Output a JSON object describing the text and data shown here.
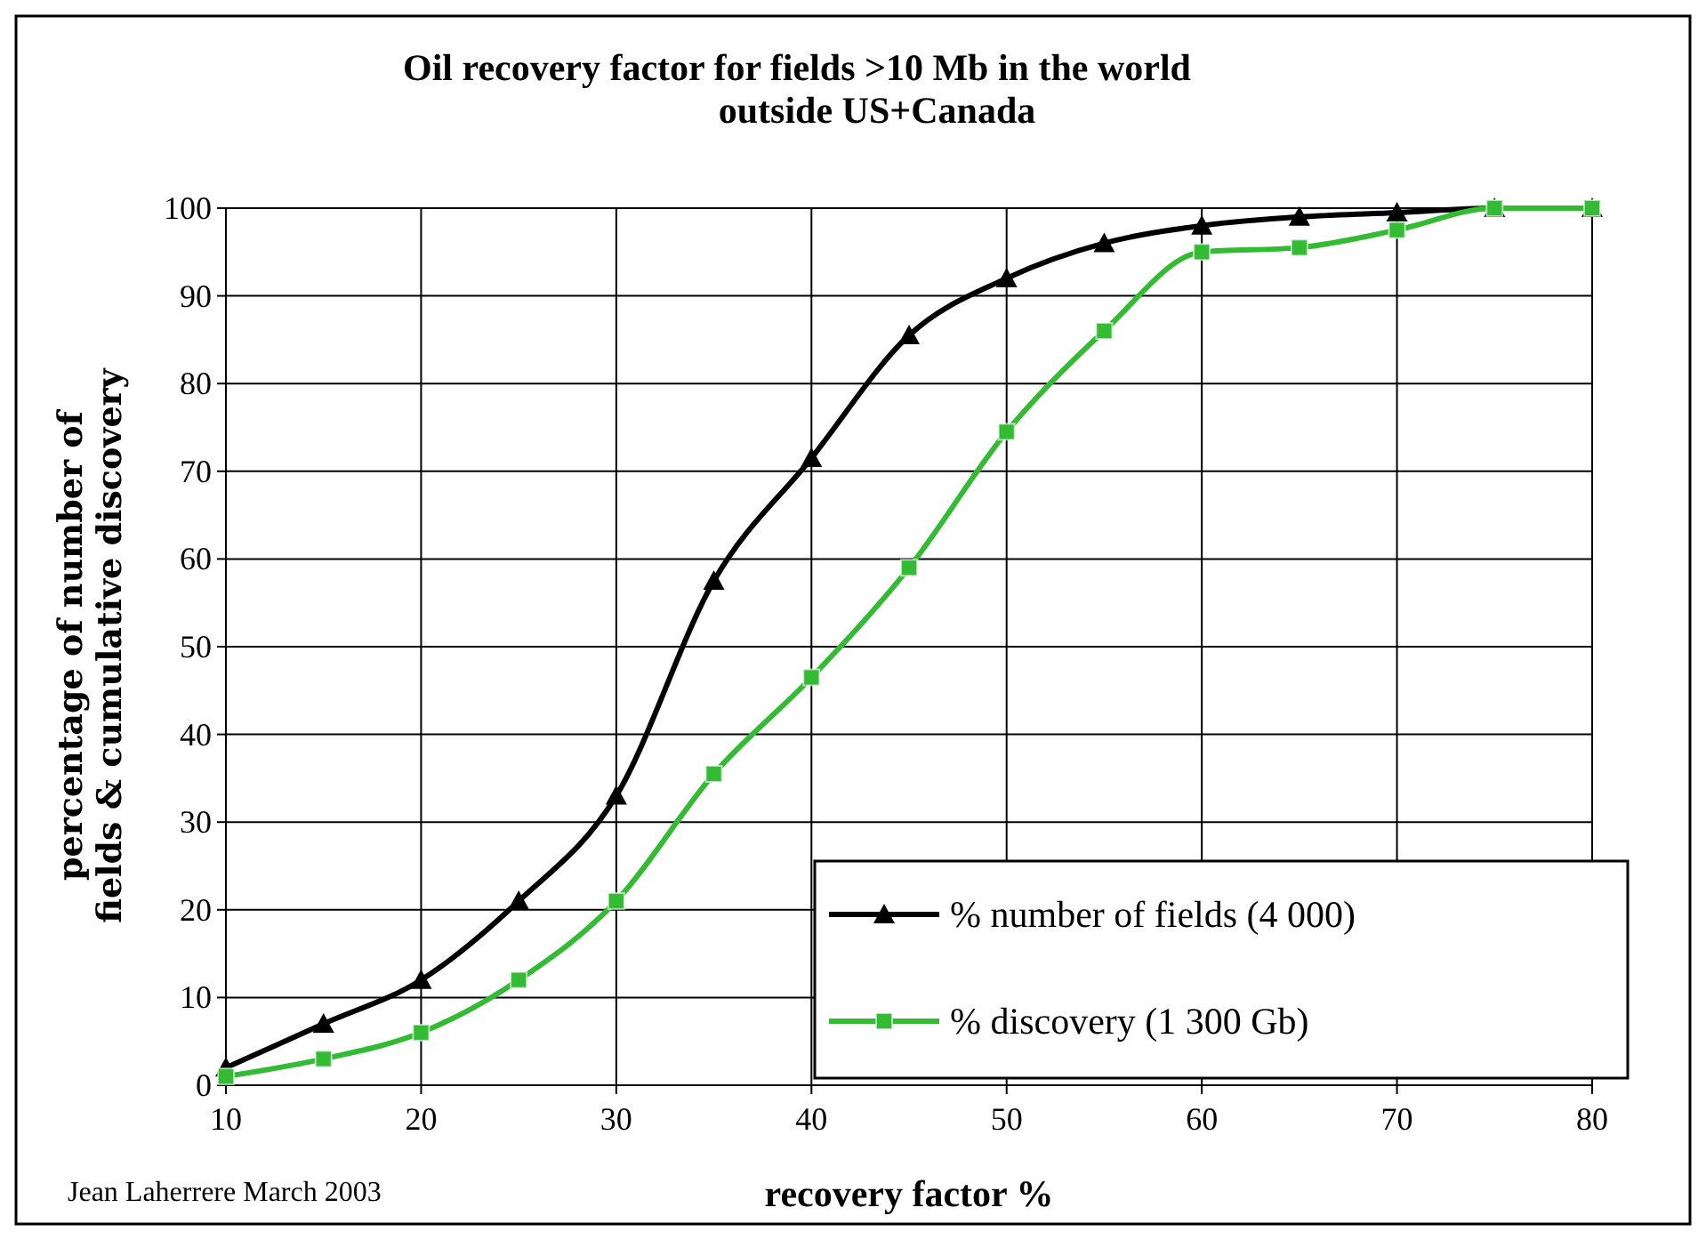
{
  "chart_data": {
    "type": "line",
    "title": "Oil recovery factor for fields >10 Mb in the world\noutside US+Canada",
    "xlabel": "recovery factor %",
    "ylabel": "percentage of number of\nfields & cumulative discovery",
    "annotations": [
      "Jean Laherrere March 2003"
    ],
    "x": [
      10,
      15,
      20,
      25,
      30,
      35,
      40,
      45,
      50,
      55,
      60,
      65,
      70,
      75,
      80
    ],
    "series": [
      {
        "name": "% number of fields (4 000)",
        "color": "#000000",
        "marker": "triangle",
        "values": [
          2,
          7,
          12,
          21,
          33,
          57.5,
          71.5,
          85.5,
          92,
          96,
          98,
          99,
          99.5,
          100,
          100
        ]
      },
      {
        "name": "% discovery (1 300 Gb)",
        "color": "#33bb33",
        "marker": "square",
        "values": [
          1,
          3,
          6,
          12,
          21,
          35.5,
          46.5,
          59,
          74.5,
          86,
          95,
          95.5,
          97.5,
          100,
          100
        ]
      }
    ],
    "xlim": [
      10,
      80
    ],
    "xticks": [
      10,
      20,
      30,
      40,
      50,
      60,
      70,
      80
    ],
    "ylim": [
      0,
      100
    ],
    "yticks": [
      0,
      10,
      20,
      30,
      40,
      50,
      60,
      70,
      80,
      90,
      100
    ],
    "grid": true,
    "legend": "bottom right",
    "line_style": "solid"
  }
}
